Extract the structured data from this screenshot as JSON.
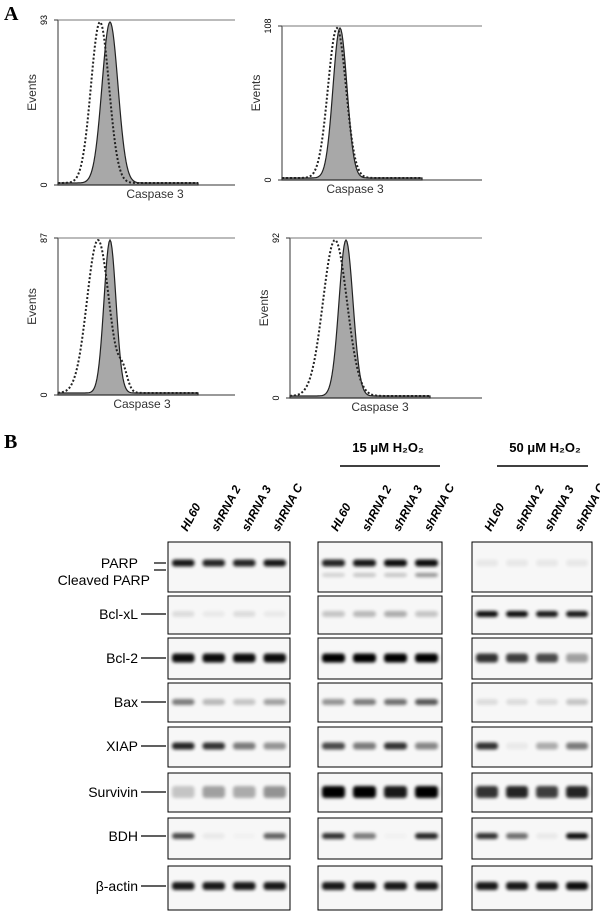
{
  "panel_a": {
    "label": "A",
    "histograms": [
      {
        "y_axis_label": "Events",
        "x_axis_label": "Caspase 3",
        "y_ticks": [
          0,
          93
        ]
      },
      {
        "y_axis_label": "Events",
        "x_axis_label": "Caspase 3",
        "y_ticks": [
          0,
          108
        ]
      },
      {
        "y_axis_label": "Events",
        "x_axis_label": "Caspase 3",
        "y_ticks": [
          0,
          87
        ]
      },
      {
        "y_axis_label": "Events",
        "x_axis_label": "Caspase 3",
        "y_ticks": [
          0,
          92
        ]
      }
    ]
  },
  "panel_b": {
    "label": "B",
    "groups": [
      {
        "lanes": [
          "HL60",
          "shRNA 2",
          "shRNA 3",
          "shRNA C"
        ]
      },
      {
        "header": "15 μM H₂O₂",
        "lanes": [
          "HL60",
          "shRNA 2",
          "shRNA 3",
          "shRNA C"
        ]
      },
      {
        "header": "50 μM H₂O₂",
        "lanes": [
          "HL60",
          "shRNA 2",
          "shRNA 3",
          "shRNA C"
        ]
      }
    ],
    "rows": [
      "PARP",
      "Cleaved PARP",
      "Bcl-xL",
      "Bcl-2",
      "Bax",
      "XIAP",
      "Survivin",
      "BDH",
      "β-actin"
    ]
  }
}
